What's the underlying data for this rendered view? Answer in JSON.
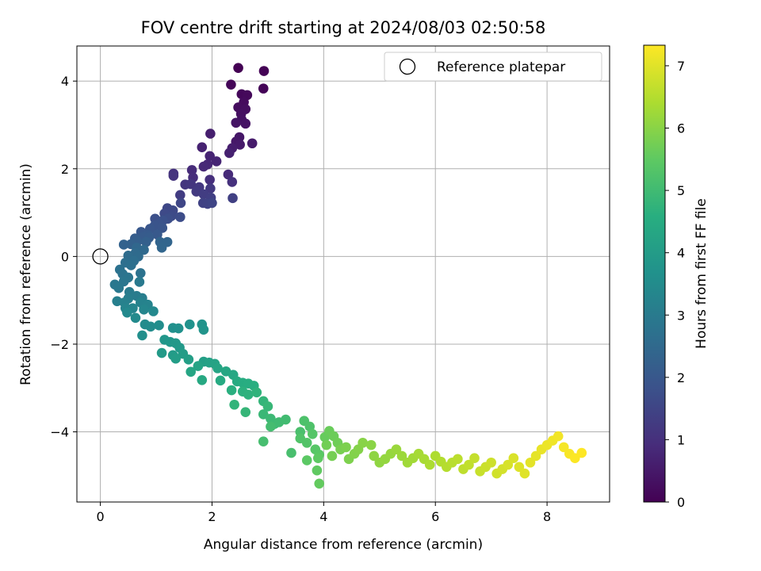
{
  "chart_data": {
    "type": "scatter",
    "title": "FOV centre drift starting at 2024/08/03 02:50:58",
    "xlabel": "Angular distance from reference (arcmin)",
    "ylabel": "Rotation from reference (arcmin)",
    "xlim": [
      -0.42,
      9.12
    ],
    "ylim": [
      -5.6,
      4.8
    ],
    "xticks": [
      0,
      2,
      4,
      6,
      8
    ],
    "yticks": [
      -4,
      -2,
      0,
      2,
      4
    ],
    "grid": true,
    "legend": {
      "position": "top-right",
      "entries": [
        "Reference platepar"
      ]
    },
    "reference_point": {
      "x": 0,
      "y": 0,
      "label": "Reference platepar"
    },
    "colorbar": {
      "label": "Hours from first FF file",
      "range": [
        0,
        7.33
      ],
      "ticks": [
        0,
        1,
        2,
        3,
        4,
        5,
        6,
        7
      ],
      "colormap": "viridis"
    },
    "points": [
      [
        2.47,
        4.3,
        0.0
      ],
      [
        2.93,
        4.23,
        0.03
      ],
      [
        2.92,
        3.83,
        0.06
      ],
      [
        2.34,
        3.92,
        0.1
      ],
      [
        2.53,
        3.7,
        0.13
      ],
      [
        2.63,
        3.68,
        0.17
      ],
      [
        2.57,
        3.52,
        0.2
      ],
      [
        2.47,
        3.4,
        0.24
      ],
      [
        2.6,
        3.36,
        0.27
      ],
      [
        2.52,
        3.25,
        0.31
      ],
      [
        2.53,
        3.12,
        0.34
      ],
      [
        2.6,
        3.03,
        0.38
      ],
      [
        2.43,
        3.05,
        0.41
      ],
      [
        2.49,
        2.72,
        0.45
      ],
      [
        2.43,
        2.62,
        0.48
      ],
      [
        2.5,
        2.55,
        0.52
      ],
      [
        2.72,
        2.58,
        0.55
      ],
      [
        2.36,
        2.47,
        0.59
      ],
      [
        1.97,
        2.8,
        0.62
      ],
      [
        2.31,
        2.36,
        0.66
      ],
      [
        1.82,
        2.49,
        0.69
      ],
      [
        1.96,
        2.29,
        0.73
      ],
      [
        2.08,
        2.17,
        0.76
      ],
      [
        1.92,
        2.1,
        0.8
      ],
      [
        1.85,
        2.05,
        0.83
      ],
      [
        2.29,
        1.87,
        0.87
      ],
      [
        1.64,
        1.97,
        0.9
      ],
      [
        1.66,
        1.8,
        0.94
      ],
      [
        1.96,
        1.75,
        0.97
      ],
      [
        2.36,
        1.7,
        1.01
      ],
      [
        1.31,
        1.89,
        1.04
      ],
      [
        1.31,
        1.84,
        1.08
      ],
      [
        1.52,
        1.64,
        1.11
      ],
      [
        1.62,
        1.65,
        1.15
      ],
      [
        1.77,
        1.58,
        1.18
      ],
      [
        1.97,
        1.55,
        1.22
      ],
      [
        1.72,
        1.48,
        1.25
      ],
      [
        1.43,
        1.4,
        1.29
      ],
      [
        1.85,
        1.42,
        1.32
      ],
      [
        1.98,
        1.34,
        1.36
      ],
      [
        2.37,
        1.33,
        1.39
      ],
      [
        1.84,
        1.22,
        1.43
      ],
      [
        1.92,
        1.2,
        1.46
      ],
      [
        2.0,
        1.22,
        1.5
      ],
      [
        1.44,
        1.22,
        1.53
      ],
      [
        1.2,
        1.1,
        1.57
      ],
      [
        1.3,
        1.05,
        1.6
      ],
      [
        1.15,
        0.98,
        1.64
      ],
      [
        1.27,
        0.92,
        1.67
      ],
      [
        1.43,
        0.9,
        1.71
      ],
      [
        1.21,
        0.86,
        1.74
      ],
      [
        0.98,
        0.86,
        1.78
      ],
      [
        1.12,
        0.82,
        1.81
      ],
      [
        1.05,
        0.75,
        1.85
      ],
      [
        0.97,
        0.7,
        1.88
      ],
      [
        1.11,
        0.65,
        1.92
      ],
      [
        0.89,
        0.63,
        1.95
      ],
      [
        0.73,
        0.56,
        1.99
      ],
      [
        1.02,
        0.5,
        2.02
      ],
      [
        0.85,
        0.49,
        2.06
      ],
      [
        0.77,
        0.45,
        2.09
      ],
      [
        0.87,
        0.43,
        2.13
      ],
      [
        0.62,
        0.41,
        2.16
      ],
      [
        0.66,
        0.34,
        2.2
      ],
      [
        0.82,
        0.33,
        2.23
      ],
      [
        0.55,
        0.28,
        2.27
      ],
      [
        0.42,
        0.27,
        2.3
      ],
      [
        1.07,
        0.33,
        2.34
      ],
      [
        1.2,
        0.33,
        2.37
      ],
      [
        1.1,
        0.2,
        2.41
      ],
      [
        0.65,
        0.2,
        2.44
      ],
      [
        0.78,
        0.15,
        2.48
      ],
      [
        0.63,
        0.08,
        2.51
      ],
      [
        0.68,
        0.0,
        2.55
      ],
      [
        0.5,
        0.02,
        2.58
      ],
      [
        0.6,
        -0.1,
        2.62
      ],
      [
        0.45,
        -0.14,
        2.65
      ],
      [
        0.55,
        -0.2,
        2.69
      ],
      [
        0.35,
        -0.3,
        2.72
      ],
      [
        0.72,
        -0.38,
        2.76
      ],
      [
        0.4,
        -0.4,
        2.79
      ],
      [
        0.5,
        -0.48,
        2.83
      ],
      [
        0.42,
        -0.57,
        2.86
      ],
      [
        0.26,
        -0.64,
        2.9
      ],
      [
        0.33,
        -0.72,
        2.93
      ],
      [
        0.7,
        -0.58,
        2.97
      ],
      [
        0.52,
        -0.81,
        3.0
      ],
      [
        0.65,
        -0.9,
        3.04
      ],
      [
        0.75,
        -0.95,
        3.07
      ],
      [
        0.5,
        -0.96,
        3.11
      ],
      [
        0.3,
        -1.02,
        3.14
      ],
      [
        0.43,
        -1.05,
        3.18
      ],
      [
        0.72,
        -1.05,
        3.21
      ],
      [
        0.85,
        -1.1,
        3.25
      ],
      [
        0.45,
        -1.18,
        3.28
      ],
      [
        0.58,
        -1.18,
        3.32
      ],
      [
        0.78,
        -1.21,
        3.35
      ],
      [
        0.95,
        -1.25,
        3.39
      ],
      [
        0.48,
        -1.28,
        3.42
      ],
      [
        0.63,
        -1.4,
        3.46
      ],
      [
        0.8,
        -1.55,
        3.49
      ],
      [
        0.9,
        -1.6,
        3.53
      ],
      [
        1.05,
        -1.57,
        3.56
      ],
      [
        0.75,
        -1.8,
        3.6
      ],
      [
        1.3,
        -1.63,
        3.63
      ],
      [
        1.4,
        -1.64,
        3.67
      ],
      [
        1.6,
        -1.55,
        3.7
      ],
      [
        1.82,
        -1.55,
        3.74
      ],
      [
        1.85,
        -1.67,
        3.77
      ],
      [
        1.15,
        -1.9,
        3.81
      ],
      [
        1.25,
        -1.95,
        3.84
      ],
      [
        1.35,
        -1.98,
        3.88
      ],
      [
        1.42,
        -2.08,
        3.91
      ],
      [
        1.1,
        -2.2,
        3.95
      ],
      [
        1.3,
        -2.25,
        3.98
      ],
      [
        1.48,
        -2.22,
        4.02
      ],
      [
        1.35,
        -2.33,
        4.05
      ],
      [
        1.58,
        -2.35,
        4.09
      ],
      [
        1.85,
        -2.4,
        4.12
      ],
      [
        1.95,
        -2.42,
        4.16
      ],
      [
        2.05,
        -2.45,
        4.19
      ],
      [
        1.75,
        -2.5,
        4.23
      ],
      [
        2.1,
        -2.55,
        4.26
      ],
      [
        1.62,
        -2.63,
        4.3
      ],
      [
        2.25,
        -2.62,
        4.33
      ],
      [
        2.38,
        -2.7,
        4.37
      ],
      [
        1.82,
        -2.82,
        4.4
      ],
      [
        2.15,
        -2.83,
        4.44
      ],
      [
        2.45,
        -2.85,
        4.47
      ],
      [
        2.55,
        -2.88,
        4.51
      ],
      [
        2.65,
        -2.9,
        4.54
      ],
      [
        2.75,
        -2.95,
        4.58
      ],
      [
        2.35,
        -3.05,
        4.61
      ],
      [
        2.55,
        -3.08,
        4.65
      ],
      [
        2.65,
        -3.15,
        4.68
      ],
      [
        2.8,
        -3.1,
        4.72
      ],
      [
        2.4,
        -3.38,
        4.75
      ],
      [
        2.92,
        -3.3,
        4.79
      ],
      [
        2.6,
        -3.55,
        4.82
      ],
      [
        3.0,
        -3.42,
        4.86
      ],
      [
        2.92,
        -3.6,
        4.89
      ],
      [
        3.05,
        -3.7,
        4.93
      ],
      [
        3.12,
        -3.82,
        4.96
      ],
      [
        3.2,
        -3.78,
        5.0
      ],
      [
        3.32,
        -3.72,
        5.03
      ],
      [
        3.05,
        -3.88,
        5.07
      ],
      [
        2.92,
        -4.22,
        5.1
      ],
      [
        3.42,
        -4.48,
        5.14
      ],
      [
        3.58,
        -4.0,
        5.17
      ],
      [
        3.65,
        -3.75,
        5.21
      ],
      [
        3.75,
        -3.88,
        5.24
      ],
      [
        3.58,
        -4.15,
        5.28
      ],
      [
        3.7,
        -4.25,
        5.31
      ],
      [
        3.8,
        -4.05,
        5.35
      ],
      [
        3.85,
        -4.4,
        5.38
      ],
      [
        3.92,
        -4.52,
        5.42
      ],
      [
        3.7,
        -4.65,
        5.45
      ],
      [
        3.9,
        -4.6,
        5.49
      ],
      [
        3.88,
        -4.88,
        5.52
      ],
      [
        3.92,
        -5.18,
        5.56
      ],
      [
        4.02,
        -4.12,
        5.59
      ],
      [
        4.1,
        -3.98,
        5.63
      ],
      [
        4.18,
        -4.1,
        5.66
      ],
      [
        4.25,
        -4.25,
        5.7
      ],
      [
        4.05,
        -4.3,
        5.73
      ],
      [
        4.15,
        -4.55,
        5.77
      ],
      [
        4.3,
        -4.4,
        5.8
      ],
      [
        4.4,
        -4.35,
        5.84
      ],
      [
        4.45,
        -4.62,
        5.87
      ],
      [
        4.55,
        -4.5,
        5.91
      ],
      [
        4.62,
        -4.4,
        5.94
      ],
      [
        4.7,
        -4.25,
        5.98
      ],
      [
        4.85,
        -4.3,
        6.01
      ],
      [
        4.9,
        -4.55,
        6.05
      ],
      [
        5.0,
        -4.7,
        6.08
      ],
      [
        5.1,
        -4.62,
        6.12
      ],
      [
        5.2,
        -4.5,
        6.15
      ],
      [
        5.3,
        -4.4,
        6.19
      ],
      [
        5.4,
        -4.55,
        6.22
      ],
      [
        5.5,
        -4.7,
        6.26
      ],
      [
        5.6,
        -4.6,
        6.29
      ],
      [
        5.7,
        -4.5,
        6.33
      ],
      [
        5.8,
        -4.62,
        6.36
      ],
      [
        5.9,
        -4.75,
        6.4
      ],
      [
        6.0,
        -4.55,
        6.43
      ],
      [
        6.1,
        -4.68,
        6.47
      ],
      [
        6.2,
        -4.8,
        6.5
      ],
      [
        6.3,
        -4.7,
        6.54
      ],
      [
        6.4,
        -4.62,
        6.57
      ],
      [
        6.5,
        -4.85,
        6.61
      ],
      [
        6.6,
        -4.75,
        6.64
      ],
      [
        6.7,
        -4.6,
        6.68
      ],
      [
        6.8,
        -4.9,
        6.71
      ],
      [
        6.9,
        -4.8,
        6.75
      ],
      [
        7.0,
        -4.7,
        6.78
      ],
      [
        7.1,
        -4.95,
        6.82
      ],
      [
        7.2,
        -4.85,
        6.85
      ],
      [
        7.3,
        -4.75,
        6.89
      ],
      [
        7.4,
        -4.6,
        6.92
      ],
      [
        7.5,
        -4.8,
        6.96
      ],
      [
        7.6,
        -4.95,
        6.99
      ],
      [
        7.7,
        -4.7,
        7.03
      ],
      [
        7.8,
        -4.55,
        7.06
      ],
      [
        7.9,
        -4.4,
        7.1
      ],
      [
        8.0,
        -4.3,
        7.13
      ],
      [
        8.1,
        -4.2,
        7.17
      ],
      [
        8.2,
        -4.1,
        7.2
      ],
      [
        8.3,
        -4.35,
        7.24
      ],
      [
        8.4,
        -4.5,
        7.27
      ],
      [
        8.5,
        -4.6,
        7.31
      ],
      [
        8.62,
        -4.48,
        7.33
      ]
    ]
  }
}
